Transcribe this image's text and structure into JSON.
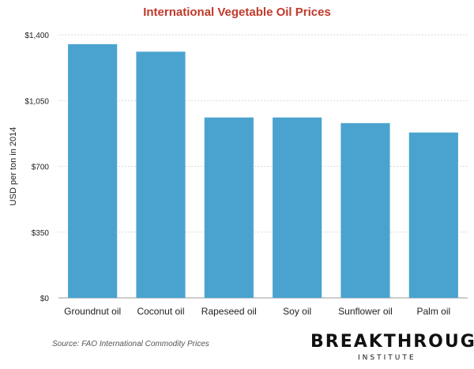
{
  "colors": {
    "bar": "#4aa3cf",
    "title": "#c0392b",
    "grid": "#d9d9d9",
    "text": "#222222"
  },
  "chart_data": {
    "type": "bar",
    "title": "International Vegetable Oil Prices",
    "ylabel": "USD per ton in 2014",
    "xlabel": "",
    "categories": [
      "Groundnut oil",
      "Coconut oil",
      "Rapeseed oil",
      "Soy oil",
      "Sunflower oil",
      "Palm oil"
    ],
    "values": [
      1350,
      1310,
      960,
      960,
      930,
      880
    ],
    "ylim": [
      0,
      1400
    ],
    "yticks": [
      0,
      350,
      700,
      1050,
      1400
    ],
    "ytick_labels": [
      "$0",
      "$350",
      "$700",
      "$1,050",
      "$1,400"
    ],
    "grid": true
  },
  "source": "Source: FAO International Commodity Prices",
  "logo": {
    "main": "BREAKTHROUGH",
    "sub": "INSTITUTE"
  }
}
